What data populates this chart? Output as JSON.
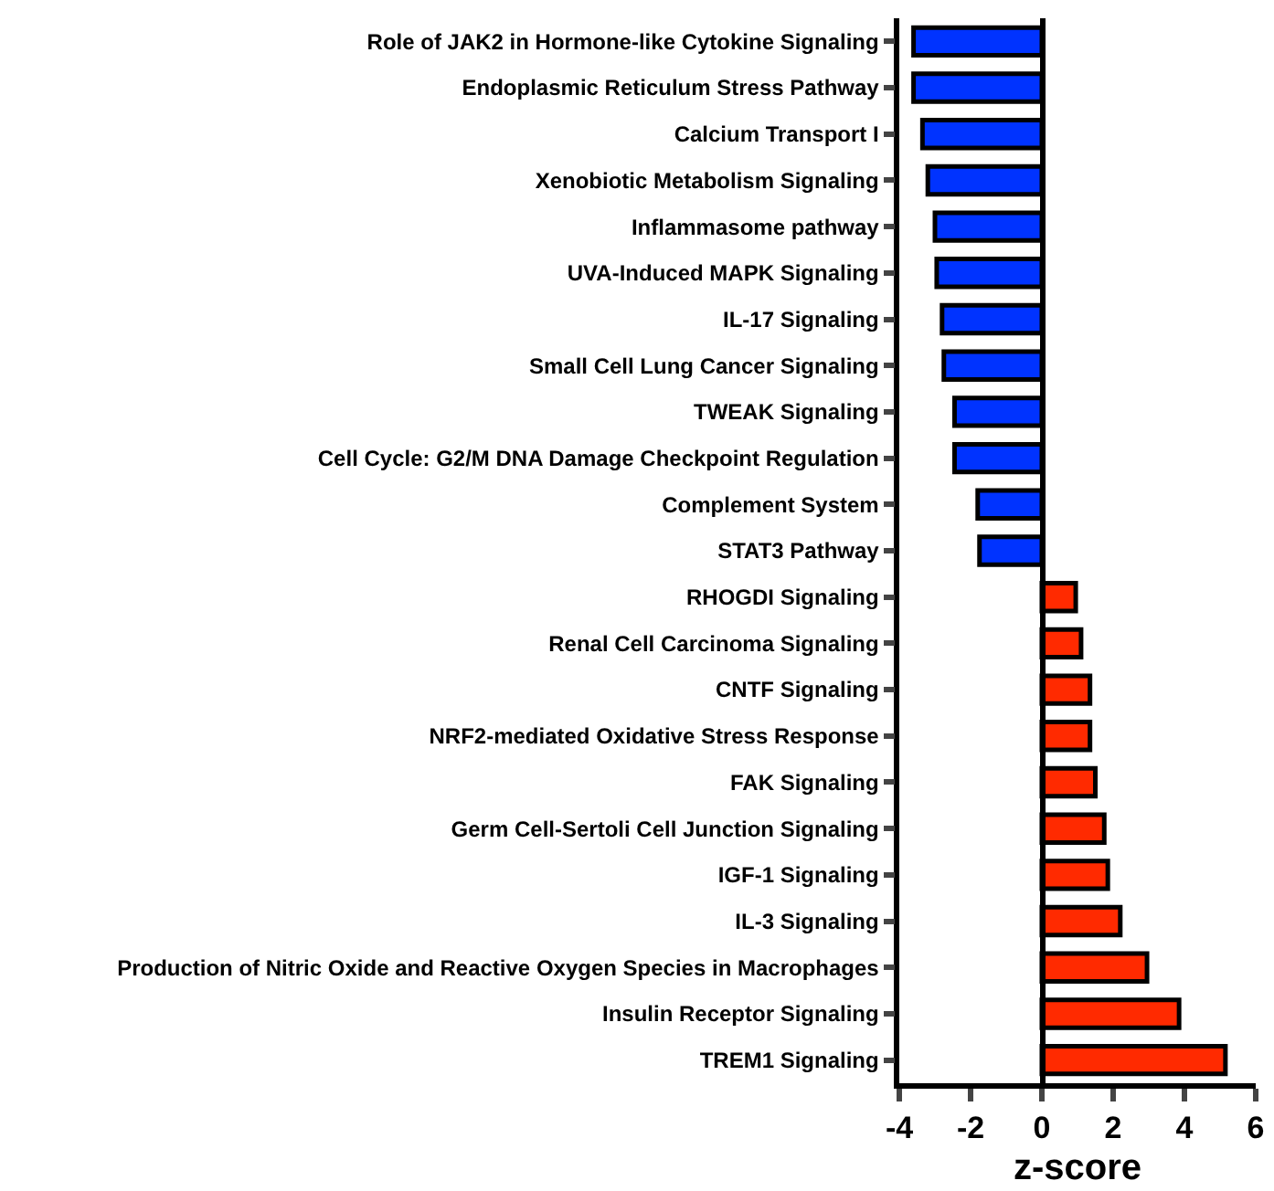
{
  "chart_data": {
    "type": "bar",
    "orientation": "horizontal",
    "xlabel": "z-score",
    "categories": [
      "Role of JAK2 in Hormone-like Cytokine Signaling",
      "Endoplasmic Reticulum Stress Pathway",
      "Calcium Transport I",
      "Xenobiotic Metabolism Signaling",
      "Inflammasome pathway",
      "UVA-Induced MAPK Signaling",
      "IL-17 Signaling",
      "Small Cell Lung Cancer Signaling",
      "TWEAK Signaling",
      "Cell Cycle: G2/M DNA Damage Checkpoint Regulation",
      "Complement System",
      "STAT3 Pathway",
      "RHOGDI Signaling",
      "Renal Cell Carcinoma Signaling",
      "CNTF Signaling",
      "NRF2-mediated Oxidative Stress Response",
      "FAK Signaling",
      "Germ Cell-Sertoli Cell Junction Signaling",
      "IGF-1 Signaling",
      "IL-3 Signaling",
      "Production of Nitric Oxide and Reactive Oxygen Species in Macrophages",
      "Insulin Receptor Signaling",
      "TREM1 Signaling"
    ],
    "values": [
      -3.6,
      -3.6,
      -3.35,
      -3.2,
      -3.0,
      -2.95,
      -2.8,
      -2.75,
      -2.45,
      -2.45,
      -1.8,
      -1.75,
      0.95,
      1.1,
      1.35,
      1.35,
      1.5,
      1.75,
      1.85,
      2.2,
      2.95,
      3.85,
      5.15
    ],
    "colors": [
      "#0033ff",
      "#0033ff",
      "#0033ff",
      "#0033ff",
      "#0033ff",
      "#0033ff",
      "#0033ff",
      "#0033ff",
      "#0033ff",
      "#0033ff",
      "#0033ff",
      "#0033ff",
      "#ff2a00",
      "#ff2a00",
      "#ff2a00",
      "#ff2a00",
      "#ff2a00",
      "#ff2a00",
      "#ff2a00",
      "#ff2a00",
      "#ff2a00",
      "#ff2a00",
      "#ff2a00"
    ],
    "xlim": [
      -4,
      6
    ],
    "xticks": [
      -4,
      -2,
      0,
      2,
      4,
      6
    ]
  }
}
